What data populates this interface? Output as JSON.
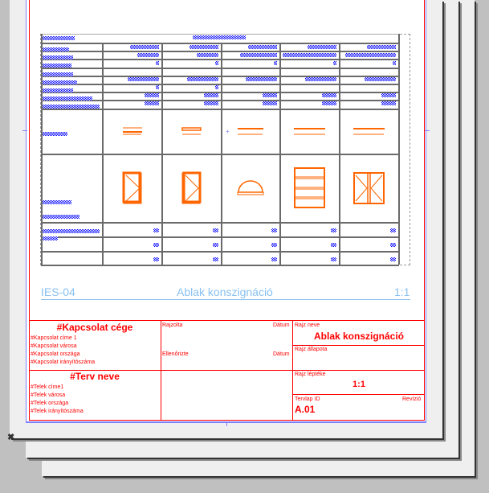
{
  "sheet_header": {
    "id": "IES-04",
    "title": "Ablak konszignáció",
    "scale": "1:1"
  },
  "title_block": {
    "contact": {
      "company": "#Kapcsolat cége",
      "lines": [
        "#Kapcsolat címe 1",
        "#Kapcsolat városa",
        "#Kapcsolat országa",
        "#Kapcsolat irányítószáma"
      ]
    },
    "project": {
      "name": "#Terv neve",
      "lines": [
        "#Telek címe1",
        "#Telek városa",
        "#Telek országa",
        "#Telek irányítószáma"
      ]
    },
    "drawn_by_label": "Rajzolta",
    "checked_by_label": "Ellenőrizte",
    "date_label": "Dátum",
    "drawing_name_label": "Rajz neve",
    "drawing_name": "Ablak konszignáció",
    "drawing_status_label": "Rajz állapota",
    "drawing_scale_label": "Rajz léptéke",
    "drawing_scale": "1:1",
    "sheet_id_label": "Tervlap ID",
    "revision_label": "Revízió",
    "sheet_id": "A.01"
  },
  "schedule": {
    "symbol_color": "#ff6600",
    "text_color": "#0000ff",
    "window_types": [
      "casement-left",
      "casement-right",
      "half-round",
      "four-pane-fixed",
      "double-casement"
    ]
  },
  "colors": {
    "frame": "#ff0000",
    "margin": "#8080ff",
    "header_text": "#88c0f0",
    "grid": "#6a6a6a"
  }
}
